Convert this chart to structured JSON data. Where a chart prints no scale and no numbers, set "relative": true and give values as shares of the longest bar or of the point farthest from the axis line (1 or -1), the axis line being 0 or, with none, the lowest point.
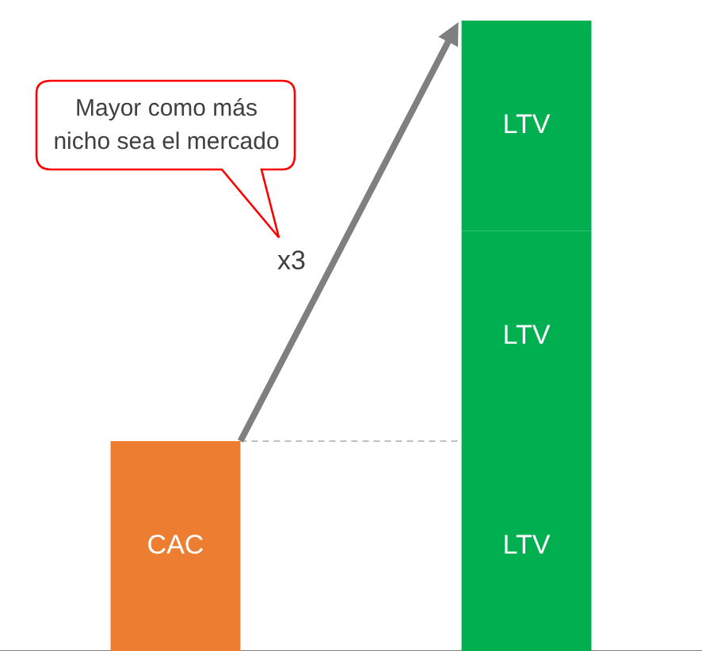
{
  "chart_data": {
    "type": "bar",
    "relative": true,
    "stacked": true,
    "categories": [
      null,
      null
    ],
    "series": [
      {
        "name": "CAC",
        "color": "#ed7d31",
        "values": [
          0.333,
          null
        ]
      },
      {
        "name": "LTV",
        "color": "#00b050",
        "values": [
          null,
          0.333
        ]
      },
      {
        "name": "LTV",
        "color": "#00b050",
        "values": [
          null,
          0.333
        ]
      },
      {
        "name": "LTV",
        "color": "#00b050",
        "values": [
          null,
          0.334
        ]
      }
    ],
    "ref_lines": [
      {
        "axis": "y",
        "value": 0.333,
        "line_style": "dashed",
        "color": "#bfbfbf"
      }
    ],
    "annotations": [
      "Mayor como más nicho sea el mercado",
      "x3"
    ],
    "grid": false,
    "legend": false
  }
}
